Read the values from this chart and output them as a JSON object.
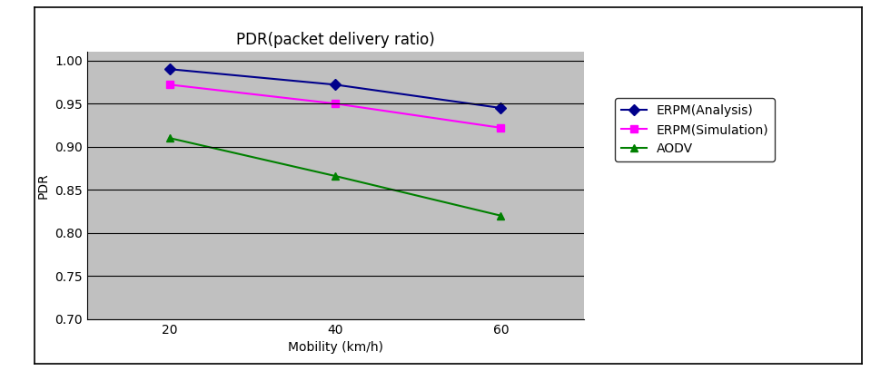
{
  "title": "PDR(packet delivery ratio)",
  "xlabel": "Mobility (km/h)",
  "ylabel": "PDR",
  "x_values": [
    20,
    40,
    60
  ],
  "series": [
    {
      "label": "ERPM(Analysis)",
      "color": "#00008B",
      "marker": "D",
      "marker_color": "#00008B",
      "y_values": [
        0.99,
        0.972,
        0.945
      ]
    },
    {
      "label": "ERPM(Simulation)",
      "color": "#FF00FF",
      "marker": "s",
      "marker_color": "#FF00FF",
      "y_values": [
        0.972,
        0.95,
        0.922
      ]
    },
    {
      "label": "AODV",
      "color": "#008000",
      "marker": "^",
      "marker_color": "#008000",
      "y_values": [
        0.91,
        0.866,
        0.82
      ]
    }
  ],
  "ylim": [
    0.7,
    1.01
  ],
  "yticks": [
    0.7,
    0.75,
    0.8,
    0.85,
    0.9,
    0.95,
    1.0
  ],
  "xticks": [
    20,
    40,
    60
  ],
  "xlim": [
    10,
    70
  ],
  "plot_bg_color": "#C0C0C0",
  "fig_bg_color": "#FFFFFF",
  "outer_border_color": "#000000",
  "grid_color": "#000000",
  "title_fontsize": 12,
  "label_fontsize": 10,
  "tick_fontsize": 10,
  "legend_fontsize": 10
}
